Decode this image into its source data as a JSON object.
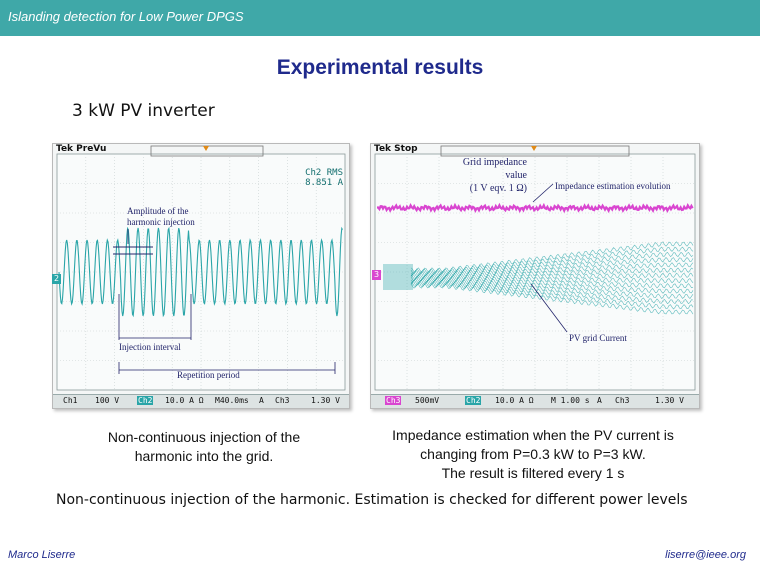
{
  "header": {
    "title": "Islanding detection for Low Power DPGS"
  },
  "slide": {
    "title": "Experimental results",
    "subtitle": "3 kW PV inverter"
  },
  "scope_left": {
    "mode_label": "Tek PreVu",
    "readout_line1": "Ch2 RMS",
    "readout_line2": "8.851 A",
    "annotations": {
      "amplitude_line1": "Amplitude of the",
      "amplitude_line2": "harmonic injection",
      "injection_interval": "Injection interval",
      "repetition_period": "Repetition period"
    },
    "status": {
      "ch1": "Ch1",
      "ch1_scale": "100 V",
      "ch2": "Ch2",
      "ch2_scale": "10.0 A Ω",
      "timebase": "M40.0ms",
      "trig": "A",
      "ch3": "Ch3",
      "ch3_scale": "1.30 V"
    },
    "marker_ch": "2"
  },
  "scope_right": {
    "mode_label": "Tek Stop",
    "annotations": {
      "grid_line1": "Grid impedance",
      "grid_line2": "value",
      "grid_line3": "(1 V eqv. 1 Ω)",
      "evolution": "Impedance estimation evolution",
      "pv_current": "PV grid Current"
    },
    "status": {
      "ch3": "Ch3",
      "ch3_scale": "500mV",
      "ch2": "Ch2",
      "ch2_scale": "10.0 A Ω",
      "timebase": "M 1.00 s",
      "trig": "A",
      "ch3b": "Ch3",
      "ch3b_scale": "1.30 V"
    },
    "marker_ch": "3"
  },
  "captions": {
    "left_line1": "Non-continuous injection of the",
    "left_line2": "harmonic into the grid.",
    "right_line1": "Impedance estimation when the PV current is",
    "right_line2": "changing from P=0.3 kW to P=3 kW.",
    "right_line3": "The result is filtered every 1 s"
  },
  "body_text": "Non-continuous injection of the harmonic. Estimation is checked for different power levels",
  "footer": {
    "author": "Marco Liserre",
    "email": "liserre@ieee.org"
  },
  "colors": {
    "header_bg": "#3fa8a8",
    "title": "#1f2a8c",
    "trace_cyan": "#2aa5a8",
    "trace_magenta": "#d946d0"
  }
}
